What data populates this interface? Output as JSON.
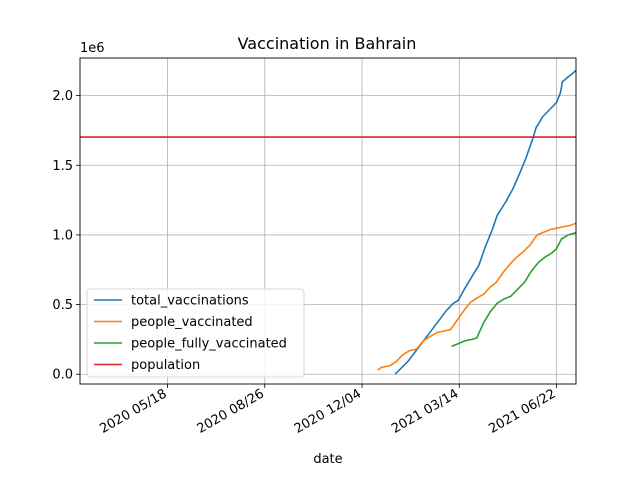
{
  "chart_data": {
    "type": "line",
    "title": "Vaccination in Bahrain",
    "xlabel": "date",
    "ylabel": "",
    "y_offset_label": "1e6",
    "x_range": [
      "2020-02-18",
      "2021-07-12"
    ],
    "ylim": [
      -70000,
      2270000
    ],
    "grid": true,
    "legend_position": "lower-left",
    "x_ticks": [
      {
        "date": "2020-05-18",
        "label": "2020 05/18"
      },
      {
        "date": "2020-08-26",
        "label": "2020 08/26"
      },
      {
        "date": "2020-12-04",
        "label": "2020 12/04"
      },
      {
        "date": "2021-03-14",
        "label": "2021 03/14"
      },
      {
        "date": "2021-06-22",
        "label": "2021 06/22"
      }
    ],
    "y_ticks": [
      {
        "value": 0,
        "label": "0.0"
      },
      {
        "value": 500000,
        "label": "0.5"
      },
      {
        "value": 1000000,
        "label": "1.0"
      },
      {
        "value": 1500000,
        "label": "1.5"
      },
      {
        "value": 2000000,
        "label": "2.0"
      }
    ],
    "series": [
      {
        "name": "total_vaccinations",
        "color": "#1f77b4",
        "points": [
          [
            "2021-01-07",
            0
          ],
          [
            "2021-01-20",
            90000
          ],
          [
            "2021-02-01",
            200000
          ],
          [
            "2021-02-15",
            330000
          ],
          [
            "2021-03-01",
            460000
          ],
          [
            "2021-03-08",
            510000
          ],
          [
            "2021-03-13",
            530000
          ],
          [
            "2021-03-20",
            620000
          ],
          [
            "2021-03-27",
            700000
          ],
          [
            "2021-04-03",
            780000
          ],
          [
            "2021-04-10",
            920000
          ],
          [
            "2021-04-17",
            1040000
          ],
          [
            "2021-04-22",
            1140000
          ],
          [
            "2021-05-01",
            1240000
          ],
          [
            "2021-05-08",
            1330000
          ],
          [
            "2021-05-15",
            1440000
          ],
          [
            "2021-05-22",
            1560000
          ],
          [
            "2021-05-29",
            1700000
          ],
          [
            "2021-06-01",
            1770000
          ],
          [
            "2021-06-08",
            1850000
          ],
          [
            "2021-06-15",
            1900000
          ],
          [
            "2021-06-22",
            1950000
          ],
          [
            "2021-06-26",
            2020000
          ],
          [
            "2021-06-28",
            2100000
          ],
          [
            "2021-07-05",
            2140000
          ],
          [
            "2021-07-12",
            2180000
          ]
        ]
      },
      {
        "name": "people_vaccinated",
        "color": "#ff7f0e",
        "points": [
          [
            "2020-12-20",
            30000
          ],
          [
            "2020-12-24",
            50000
          ],
          [
            "2021-01-01",
            60000
          ],
          [
            "2021-01-08",
            90000
          ],
          [
            "2021-01-15",
            140000
          ],
          [
            "2021-01-22",
            170000
          ],
          [
            "2021-01-29",
            180000
          ],
          [
            "2021-02-05",
            240000
          ],
          [
            "2021-02-12",
            270000
          ],
          [
            "2021-02-19",
            300000
          ],
          [
            "2021-02-26",
            310000
          ],
          [
            "2021-03-05",
            320000
          ],
          [
            "2021-03-12",
            390000
          ],
          [
            "2021-03-19",
            460000
          ],
          [
            "2021-03-26",
            520000
          ],
          [
            "2021-04-02",
            550000
          ],
          [
            "2021-04-09",
            580000
          ],
          [
            "2021-04-14",
            620000
          ],
          [
            "2021-04-21",
            660000
          ],
          [
            "2021-04-28",
            730000
          ],
          [
            "2021-05-05",
            790000
          ],
          [
            "2021-05-12",
            840000
          ],
          [
            "2021-05-19",
            880000
          ],
          [
            "2021-05-26",
            930000
          ],
          [
            "2021-06-02",
            1000000
          ],
          [
            "2021-06-09",
            1020000
          ],
          [
            "2021-06-16",
            1040000
          ],
          [
            "2021-06-23",
            1050000
          ],
          [
            "2021-06-30",
            1060000
          ],
          [
            "2021-07-07",
            1070000
          ],
          [
            "2021-07-12",
            1085000
          ]
        ]
      },
      {
        "name": "people_fully_vaccinated",
        "color": "#2ca02c",
        "points": [
          [
            "2021-03-06",
            200000
          ],
          [
            "2021-03-13",
            220000
          ],
          [
            "2021-03-20",
            240000
          ],
          [
            "2021-03-27",
            250000
          ],
          [
            "2021-04-01",
            260000
          ],
          [
            "2021-04-08",
            370000
          ],
          [
            "2021-04-15",
            450000
          ],
          [
            "2021-04-22",
            510000
          ],
          [
            "2021-04-29",
            540000
          ],
          [
            "2021-05-06",
            560000
          ],
          [
            "2021-05-13",
            610000
          ],
          [
            "2021-05-20",
            660000
          ],
          [
            "2021-05-27",
            740000
          ],
          [
            "2021-06-03",
            800000
          ],
          [
            "2021-06-10",
            840000
          ],
          [
            "2021-06-17",
            870000
          ],
          [
            "2021-06-22",
            900000
          ],
          [
            "2021-06-27",
            970000
          ],
          [
            "2021-07-04",
            1000000
          ],
          [
            "2021-07-12",
            1015000
          ]
        ]
      },
      {
        "name": "population",
        "color": "#d62728",
        "points": [
          [
            "2020-02-18",
            1702000
          ],
          [
            "2021-07-12",
            1702000
          ]
        ]
      }
    ]
  }
}
